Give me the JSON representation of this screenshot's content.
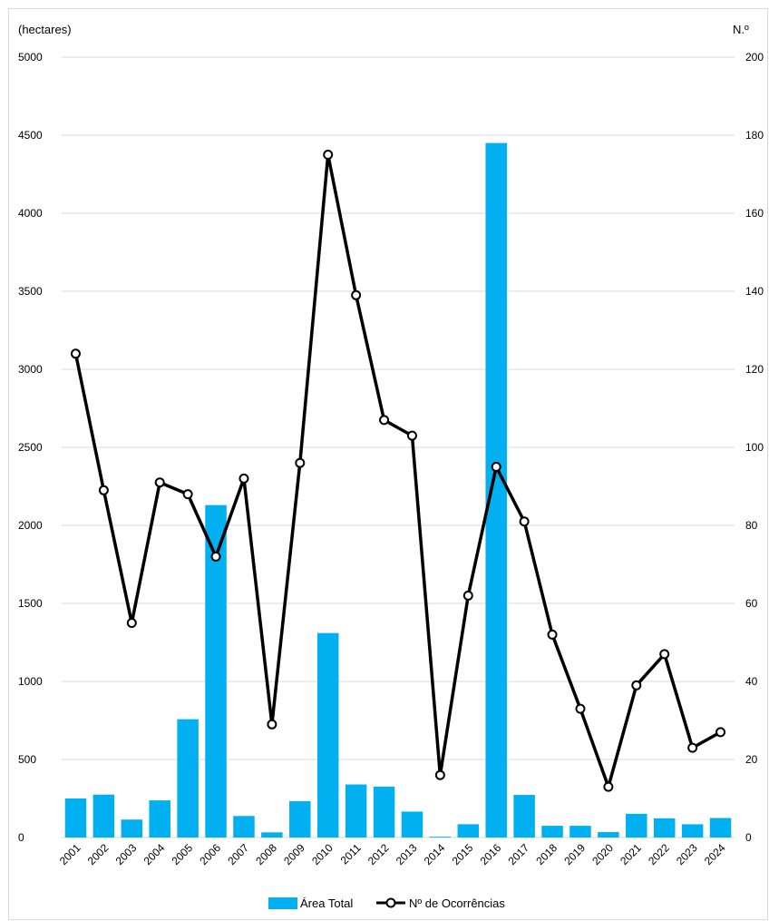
{
  "chart_data": {
    "type": "bar",
    "left_axis_label": "(hectares)",
    "right_axis_label": "N.º",
    "categories": [
      "2001",
      "2002",
      "2003",
      "2004",
      "2005",
      "2006",
      "2007",
      "2008",
      "2009",
      "2010",
      "2011",
      "2012",
      "2013",
      "2014",
      "2015",
      "2016",
      "2017",
      "2018",
      "2019",
      "2020",
      "2021",
      "2022",
      "2023",
      "2024"
    ],
    "series": [
      {
        "name": "Área Total",
        "type": "bar",
        "axis": "left",
        "color": "#00b0f0",
        "values": [
          250,
          275,
          115,
          238,
          758,
          2130,
          138,
          33,
          233,
          1310,
          340,
          326,
          166,
          5,
          85,
          4450,
          273,
          75,
          75,
          35,
          152,
          123,
          85,
          125
        ]
      },
      {
        "name": "Nº de Ocorrências",
        "type": "line",
        "axis": "right",
        "color": "#000000",
        "values": [
          124,
          89,
          55,
          91,
          88,
          72,
          92,
          29,
          96,
          175,
          139,
          107,
          103,
          16,
          62,
          95,
          81,
          52,
          33,
          13,
          39,
          47,
          23,
          27
        ]
      }
    ],
    "left_ylim": [
      0,
      5000
    ],
    "left_yticks": [
      0,
      500,
      1000,
      1500,
      2000,
      2500,
      3000,
      3500,
      4000,
      4500,
      5000
    ],
    "right_ylim": [
      0,
      200
    ],
    "right_yticks": [
      0,
      20,
      40,
      60,
      80,
      100,
      120,
      140,
      160,
      180,
      200
    ],
    "grid": "horizontal",
    "legend": "bottom"
  }
}
